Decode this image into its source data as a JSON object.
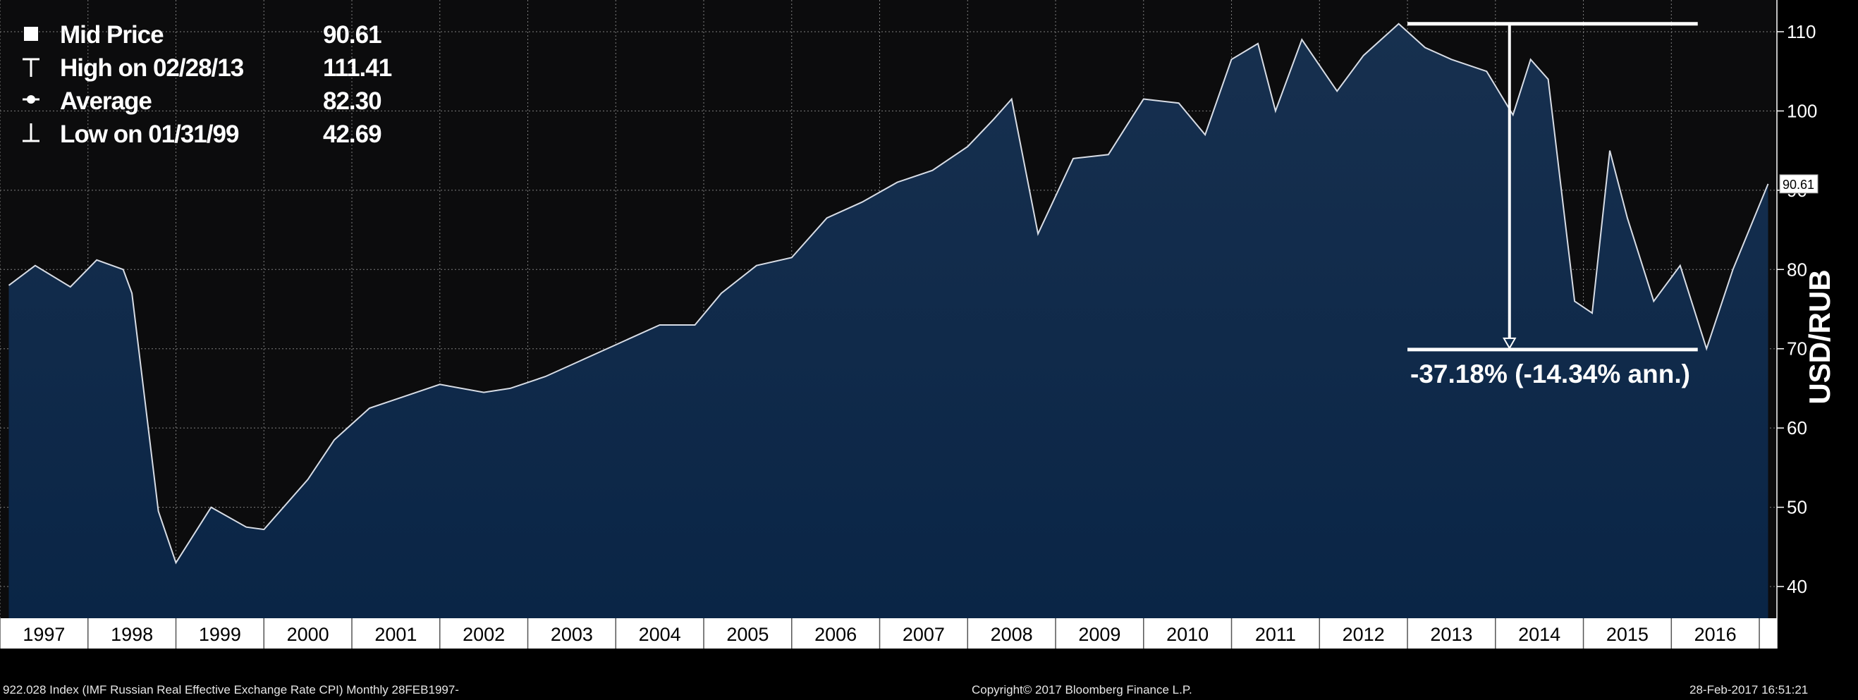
{
  "legend": [
    {
      "icon": "square-marker-icon",
      "label": "Mid Price",
      "value": "90.61"
    },
    {
      "icon": "high-marker-icon",
      "label": "High on 02/28/13",
      "value": "111.41"
    },
    {
      "icon": "average-marker-icon",
      "label": "Average",
      "value": "82.30"
    },
    {
      "icon": "low-marker-icon",
      "label": "Low on 01/31/99",
      "value": "42.69"
    }
  ],
  "annotation": {
    "text": "-37.18% (-14.34% ann.)",
    "from": 111.0,
    "to": 69.9
  },
  "last_price_label": "90.61",
  "footer": {
    "left": "922.028 Index (IMF Russian Real Effective Exchange Rate CPI)  Monthly 28FEB1997-",
    "center": "Copyright© 2017 Bloomberg Finance L.P.",
    "right": "28-Feb-2017 16:51:21"
  },
  "colors": {
    "background": "#000000",
    "line": "#d8dde6",
    "area_top": "#17304f",
    "area_bottom": "#0a2546",
    "grid": "#7f7f7f"
  },
  "chart_data": {
    "type": "area",
    "title": "",
    "xlabel": "",
    "ylabel": "USD/RUB",
    "ylim": [
      36,
      114
    ],
    "yticks": [
      40,
      50,
      60,
      70,
      80,
      90,
      100,
      110
    ],
    "xlim": [
      1997.0,
      2017.2
    ],
    "xticks": [
      "1997",
      "1998",
      "1999",
      "2000",
      "2001",
      "2002",
      "2003",
      "2004",
      "2005",
      "2006",
      "2007",
      "2008",
      "2009",
      "2010",
      "2011",
      "2012",
      "2013",
      "2014",
      "2015",
      "2016"
    ],
    "grid": true,
    "series": [
      {
        "name": "",
        "x": [
          1997.1,
          1997.4,
          1997.8,
          1998.1,
          1998.4,
          1998.5,
          1998.8,
          1999.0,
          1999.4,
          1999.8,
          2000.0,
          2000.5,
          2000.8,
          2001.2,
          2001.6,
          2002.0,
          2002.5,
          2002.8,
          2003.2,
          2003.6,
          2004.0,
          2004.5,
          2004.9,
          2005.2,
          2005.6,
          2006.0,
          2006.4,
          2006.8,
          2007.2,
          2007.6,
          2008.0,
          2008.3,
          2008.5,
          2008.8,
          2009.2,
          2009.6,
          2010.0,
          2010.4,
          2010.7,
          2011.0,
          2011.3,
          2011.5,
          2011.8,
          2012.2,
          2012.5,
          2012.9,
          2013.2,
          2013.5,
          2013.9,
          2014.2,
          2014.4,
          2014.6,
          2014.9,
          2015.1,
          2015.3,
          2015.5,
          2015.8,
          2016.1,
          2016.4,
          2016.7,
          2017.1
        ],
        "y": [
          78.0,
          80.5,
          77.8,
          81.2,
          80.0,
          77.0,
          49.5,
          43.0,
          50.0,
          47.5,
          47.2,
          53.5,
          58.5,
          62.5,
          64.0,
          65.5,
          64.5,
          65.0,
          66.5,
          68.5,
          70.5,
          73.0,
          73.0,
          77.0,
          80.5,
          81.5,
          86.5,
          88.5,
          91.0,
          92.5,
          95.5,
          99.0,
          101.5,
          84.5,
          94.0,
          94.5,
          101.5,
          101.0,
          97.0,
          106.5,
          108.5,
          100.0,
          109.0,
          102.5,
          107.0,
          111.0,
          108.0,
          106.5,
          105.0,
          99.5,
          106.5,
          104.0,
          76.0,
          74.5,
          95.0,
          86.5,
          76.0,
          80.5,
          70.0,
          80.0,
          90.8
        ]
      }
    ]
  }
}
